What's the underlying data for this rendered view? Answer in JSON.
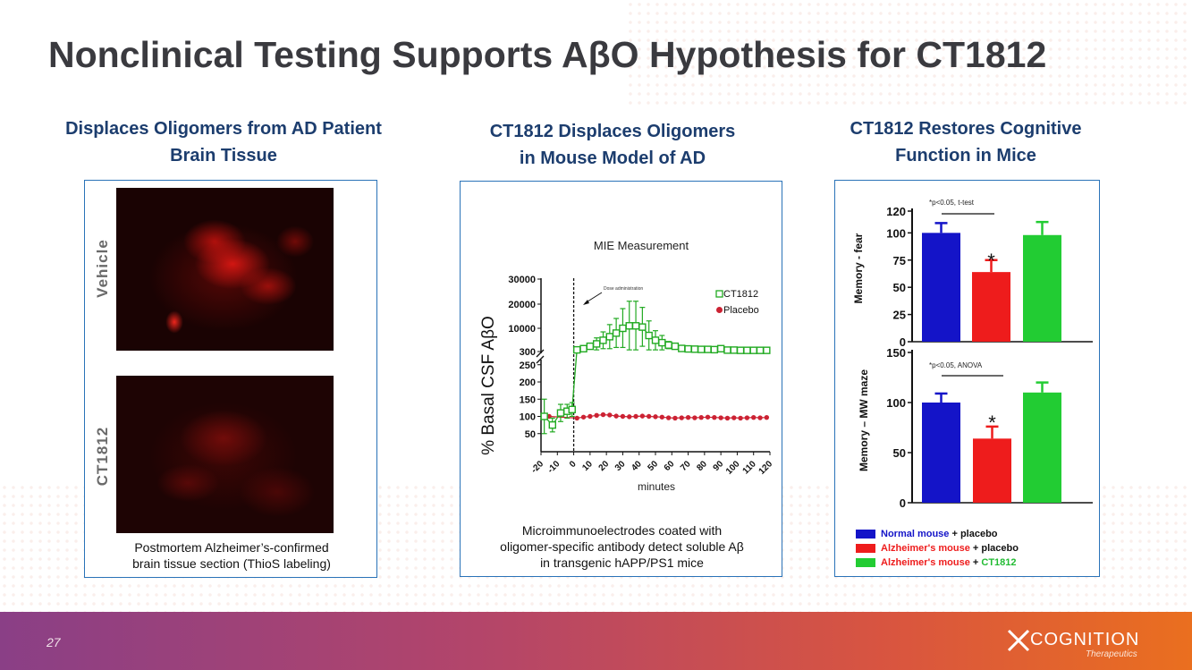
{
  "slide": {
    "title": "Nonclinical Testing Supports AβO Hypothesis for CT1812",
    "page_number": "27",
    "brand_name": "COGNITION",
    "brand_sub": "Therapeutics"
  },
  "left": {
    "heading_line1": "Displaces Oligomers from AD Patient",
    "heading_line2": "Brain Tissue",
    "label_top": "Vehicle",
    "label_bottom": "CT1812",
    "caption_line1": "Postmortem Alzheimer’s-confirmed",
    "caption_line2": "brain tissue section (ThioS labeling)"
  },
  "middle": {
    "heading_line1": "CT1812 Displaces Oligomers",
    "heading_line2": "in Mouse Model of AD",
    "caption_line1": "Microimmunoelectrodes coated with",
    "caption_line2": "oligomer-specific antibody detect soluble Aβ",
    "caption_line3": "in transgenic hAPP/PS1 mice"
  },
  "right": {
    "heading_line1": "CT1812 Restores Cognitive",
    "heading_line2": "Function in Mice",
    "legend": [
      {
        "colored": "Normal mouse",
        "rest": " + placebo",
        "color": "#1414c8",
        "rest_color": "#111111"
      },
      {
        "colored": "Alzheimer's mouse",
        "rest": " + placebo",
        "color": "#ee1c1c",
        "rest_color": "#111111"
      },
      {
        "colored": "Alzheimer's mouse",
        "rest": " + ",
        "tail": "CT1812",
        "color": "#ee1c1c",
        "rest_color": "#111111",
        "tail_color": "#22bb33"
      }
    ]
  },
  "chart_data": [
    {
      "type": "line",
      "title": "MIE Measurement",
      "xlabel": "minutes",
      "ylabel": "% Basal CSF AβO",
      "annotation": "Dose administration",
      "x_ticks": [
        -20,
        -10,
        0,
        10,
        20,
        30,
        40,
        50,
        60,
        70,
        80,
        90,
        100,
        110,
        120
      ],
      "y_ticks_lower": [
        50,
        100,
        150,
        200,
        250
      ],
      "y_ticks_upper": [
        300,
        10000,
        20000,
        30000
      ],
      "series": [
        {
          "name": "CT1812",
          "color": "#22aa22",
          "marker": "open-square",
          "x": [
            -18,
            -13,
            -8,
            -4,
            -1,
            2,
            6,
            10,
            14,
            18,
            22,
            26,
            30,
            34,
            38,
            42,
            46,
            50,
            54,
            58,
            62,
            66,
            70,
            74,
            78,
            82,
            86,
            90,
            94,
            98,
            102,
            106,
            110,
            114,
            118
          ],
          "y": [
            100,
            75,
            110,
            115,
            120,
            1000,
            1500,
            2500,
            3500,
            5000,
            6500,
            8000,
            10000,
            11000,
            11000,
            10500,
            7000,
            5000,
            4000,
            3000,
            2500,
            1600,
            1400,
            1300,
            1200,
            1200,
            1100,
            1500,
            900,
            900,
            800,
            800,
            800,
            800,
            800
          ],
          "err": [
            50,
            20,
            25,
            20,
            20,
            0,
            0,
            1000,
            2500,
            3500,
            5000,
            6000,
            8000,
            10000,
            10000,
            8000,
            6000,
            4000,
            3000,
            1500,
            1000,
            500,
            0,
            0,
            0,
            0,
            0,
            500,
            0,
            0,
            0,
            0,
            0,
            0,
            0
          ]
        },
        {
          "name": "Placebo",
          "color": "#cc2233",
          "marker": "filled-circle",
          "x": [
            -15,
            2,
            6,
            10,
            14,
            18,
            22,
            26,
            30,
            34,
            38,
            42,
            46,
            50,
            54,
            58,
            62,
            66,
            70,
            74,
            78,
            82,
            86,
            90,
            94,
            98,
            102,
            106,
            110,
            114,
            118
          ],
          "y": [
            100,
            95,
            98,
            100,
            103,
            105,
            104,
            101,
            100,
            99,
            100,
            101,
            100,
            99,
            98,
            96,
            95,
            96,
            97,
            96,
            97,
            98,
            97,
            96,
            95,
            96,
            95,
            96,
            97,
            96,
            97
          ]
        }
      ]
    },
    {
      "type": "bar",
      "ylabel": "Memory - fear",
      "annotation": "*p<0.05, t-test",
      "ylim": [
        0,
        120
      ],
      "y_ticks": [
        0,
        25,
        50,
        75,
        100,
        120
      ],
      "categories": [
        "Normal mouse + placebo",
        "Alzheimer's mouse + placebo",
        "Alzheimer's mouse + CT1812"
      ],
      "values": [
        100,
        64,
        98
      ],
      "errors": [
        9,
        11,
        12
      ],
      "colors": [
        "#1414c8",
        "#ee1c1c",
        "#22cc33"
      ],
      "significance": "*"
    },
    {
      "type": "bar",
      "ylabel": "Memory – MW maze",
      "annotation": "*p<0.05, ANOVA",
      "ylim": [
        0,
        150
      ],
      "y_ticks": [
        0,
        50,
        100,
        150
      ],
      "categories": [
        "Normal mouse + placebo",
        "Alzheimer's mouse + placebo",
        "Alzheimer's mouse + CT1812"
      ],
      "values": [
        100,
        64,
        110
      ],
      "errors": [
        9,
        12,
        10
      ],
      "colors": [
        "#1414c8",
        "#ee1c1c",
        "#22cc33"
      ],
      "significance": "*"
    }
  ]
}
